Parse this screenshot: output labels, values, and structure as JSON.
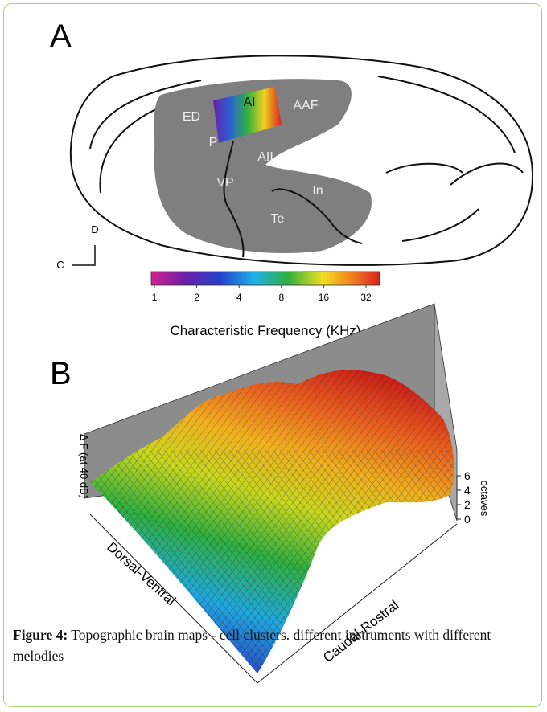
{
  "panel_a": {
    "label": "A",
    "regions": [
      "ED",
      "AI",
      "AAF",
      "P",
      "AII",
      "VP",
      "In",
      "Te"
    ],
    "orientation": {
      "dorsal": "D",
      "caudal": "C"
    },
    "colorbar": {
      "ticks": [
        1,
        2,
        4,
        8,
        16,
        32
      ],
      "label": "Characteristic Frequency (KHz)"
    }
  },
  "panel_b": {
    "label": "B",
    "z_label": "Δ F (at 40 dB)",
    "z_unit": "octaves",
    "z_ticks": [
      0,
      2,
      4,
      6
    ],
    "x_label": "Dorsal-Ventral",
    "y_label": "Caudal-Rostral"
  },
  "caption": {
    "label": "Figure 4:",
    "text": "Topographic brain maps - cell clusters. different instruments with different melodies"
  }
}
